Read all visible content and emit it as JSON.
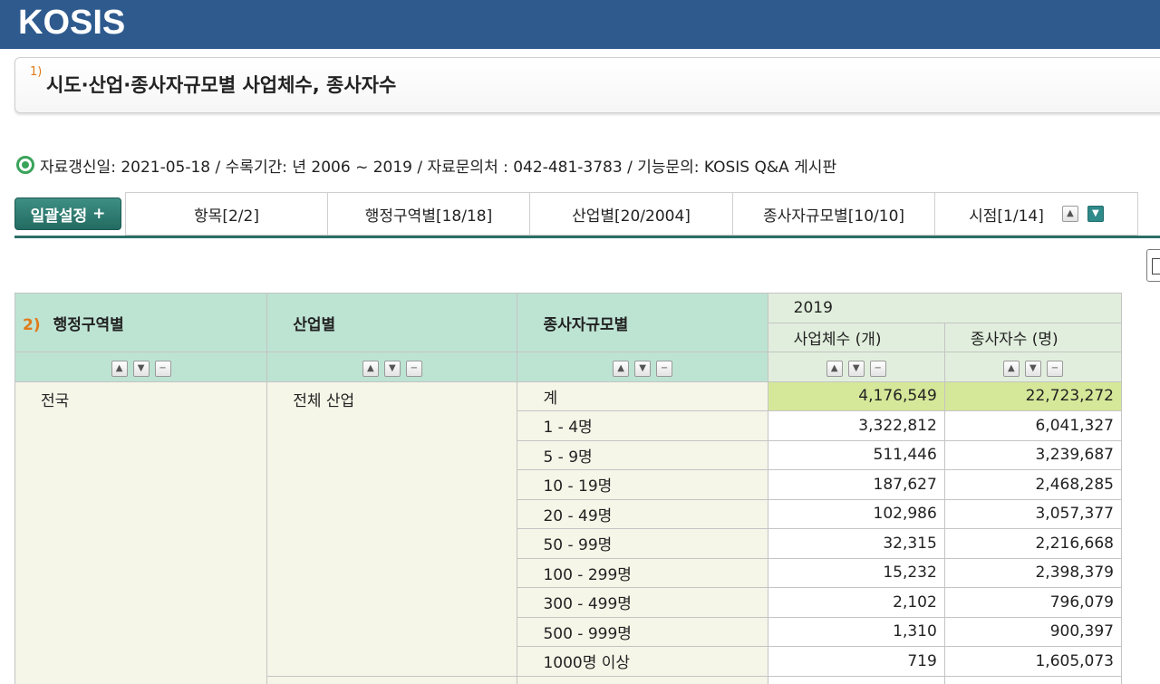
{
  "header": {
    "logo": "KOSIS"
  },
  "title": {
    "number": "1)",
    "text": "시도·산업·종사자규모별 사업체수, 종사자수"
  },
  "info": {
    "text": "자료갱신일: 2021-05-18 / 수록기간: 년 2006 ~ 2019 / 자료문의처 : 042-481-3783 / 기능문의: KOSIS Q&A 게시판"
  },
  "toolbar": {
    "bulk_label": "일괄설정",
    "bulk_icon": "+",
    "tabs": [
      {
        "label": "항목[2/2]"
      },
      {
        "label": "행정구역별[18/18]"
      },
      {
        "label": "산업별[20/2004]"
      },
      {
        "label": "종사자규모별[10/10]"
      },
      {
        "label": "시점[1/14]"
      }
    ]
  },
  "table": {
    "header_marker": "2)",
    "dim_headers": [
      "행정구역별",
      "산업별",
      "종사자규모별"
    ],
    "year": "2019",
    "value_headers": [
      "사업체수 (개)",
      "종사자수 (명)"
    ],
    "region": "전국",
    "industry": "전체 산업",
    "rows": [
      {
        "size": "계",
        "firms": "4,176,549",
        "workers": "22,723,272"
      },
      {
        "size": "1 - 4명",
        "firms": "3,322,812",
        "workers": "6,041,327"
      },
      {
        "size": "5 - 9명",
        "firms": "511,446",
        "workers": "3,239,687"
      },
      {
        "size": "10 - 19명",
        "firms": "187,627",
        "workers": "2,468,285"
      },
      {
        "size": "20 - 49명",
        "firms": "102,986",
        "workers": "3,057,377"
      },
      {
        "size": "50 - 99명",
        "firms": "32,315",
        "workers": "2,216,668"
      },
      {
        "size": "100 - 299명",
        "firms": "15,232",
        "workers": "2,398,379"
      },
      {
        "size": "300 - 499명",
        "firms": "2,102",
        "workers": "796,079"
      },
      {
        "size": "500 - 999명",
        "firms": "1,310",
        "workers": "900,397"
      },
      {
        "size": "1000명 이상",
        "firms": "719",
        "workers": "1,605,073"
      }
    ]
  },
  "colors": {
    "topbar": "#2e5a8e",
    "header_bg": "#bde3d3",
    "year_bg": "#e1eedd",
    "highlight": "#d5e899",
    "accent": "#2b6e67"
  },
  "icons": {
    "sort_up": "chevron-up-icon",
    "sort_down": "chevron-down-icon",
    "remove": "minus-icon",
    "info": "circle-icon"
  }
}
